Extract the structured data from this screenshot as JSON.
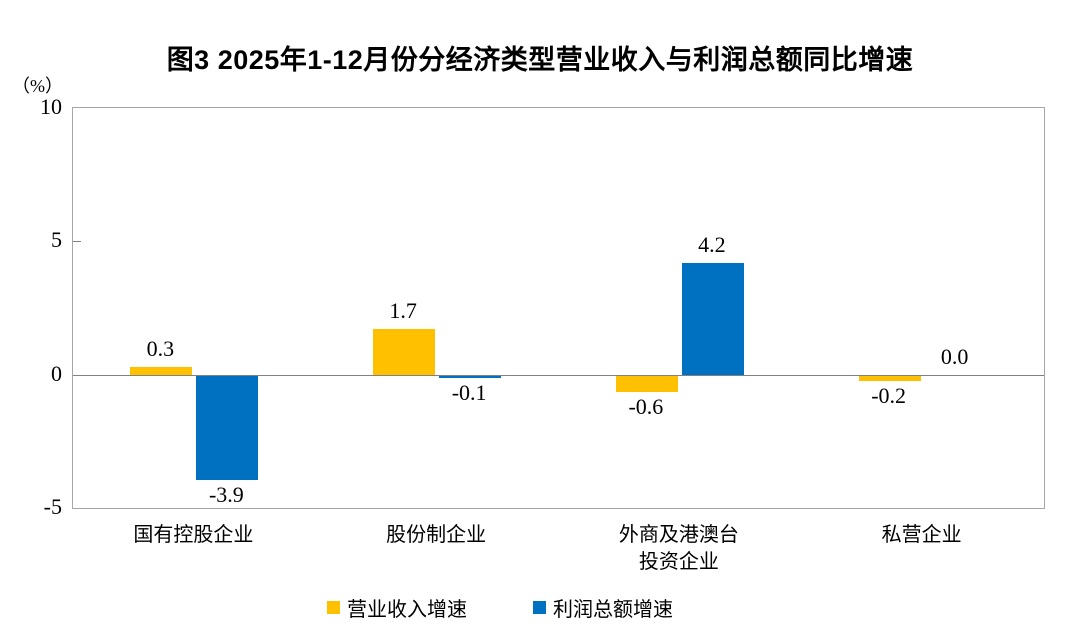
{
  "title": "图3  2025年1-12月份分经济类型营业收入与利润总额同比增速",
  "y_axis_unit": "（%）",
  "colors": {
    "revenue_series": "#FFC000",
    "profit_series": "#0070C0",
    "plot_border": "#a6a6a6",
    "zero_line": "#808080"
  },
  "chart_data": {
    "type": "bar",
    "title": "图3  2025年1-12月份分经济类型营业收入与利润总额同比增速",
    "categories": [
      "国有控股企业",
      "股份制企业",
      "外商及港澳台\n投资企业",
      "私营企业"
    ],
    "series": [
      {
        "name": "营业收入增速",
        "color": "#FFC000",
        "values": [
          0.3,
          1.7,
          -0.6,
          -0.2
        ]
      },
      {
        "name": "利润总额增速",
        "color": "#0070C0",
        "values": [
          -3.9,
          -0.1,
          4.2,
          0.0
        ]
      }
    ],
    "xlabel": "",
    "ylabel": "（%）",
    "ylim": [
      -5,
      10
    ],
    "yticks": [
      10,
      5,
      0,
      -5
    ],
    "grid": false,
    "legend_position": "bottom"
  }
}
